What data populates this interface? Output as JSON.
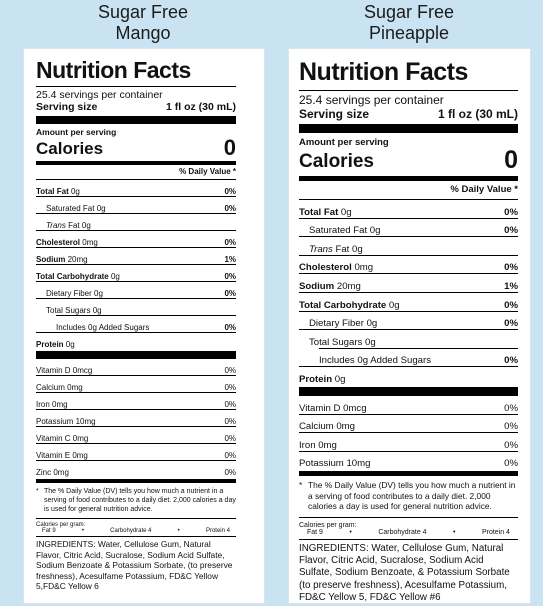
{
  "labels": [
    {
      "title_line1": "Sugar Free",
      "title_line2": "Mango",
      "heading": "Nutrition Facts",
      "servings": "25.4 servings per container",
      "serving_size_label": "Serving size",
      "serving_size_value": "1 fl oz (30 mL)",
      "amount_per_serving": "Amount per serving",
      "calories_label": "Calories",
      "calories_value": "0",
      "dv_header": "% Daily Value *",
      "rows": [
        {
          "label": "Total Fat",
          "amount": " 0g",
          "dv": "0%"
        },
        {
          "label": "Saturated Fat 0g",
          "amount": "",
          "dv": "0%"
        },
        {
          "label": "Trans",
          "amount": " Fat 0g",
          "dv": ""
        },
        {
          "label": "Cholesterol",
          "amount": " 0mg",
          "dv": "0%"
        },
        {
          "label": "Sodium",
          "amount": " 20mg",
          "dv": "1%"
        },
        {
          "label": "Total Carbohydrate",
          "amount": " 0g",
          "dv": "0%"
        },
        {
          "label": "Dietary Fiber 0g",
          "amount": "",
          "dv": "0%"
        },
        {
          "label": "Total Sugars 0g",
          "amount": "",
          "dv": ""
        },
        {
          "label": "Includes 0g Added Sugars",
          "amount": "",
          "dv": "0%"
        },
        {
          "label": "Protein",
          "amount": " 0g",
          "dv": ""
        }
      ],
      "vitamins": [
        {
          "label": "Vitamin D 0mcg",
          "dv": "0%"
        },
        {
          "label": "Calcium 0mg",
          "dv": "0%"
        },
        {
          "label": "Iron 0mg",
          "dv": "0%"
        },
        {
          "label": "Potassium 10mg",
          "dv": "0%"
        },
        {
          "label": "Vitamin C 0mg",
          "dv": "0%"
        },
        {
          "label": "Vitamin E 0mg",
          "dv": "0%"
        },
        {
          "label": "Zinc 0mg",
          "dv": "0%"
        }
      ],
      "footnote_star": "*",
      "footnote": "The % Daily Value (DV) tells you how much a nutrient in a serving of food contributes to a daily diet. 2,000 calories a day is used for general nutrition advice.",
      "cal_per_gram_label": "Calories per gram:",
      "cal_fat": "Fat 9",
      "cal_carb": "Carbohydrate 4",
      "cal_protein": "Protein 4",
      "bullet": "•",
      "ingredients": "INGREDIENTS: Water, Cellulose Gum, Natural Flavor, Citric Acid, Sucralose, Sodium Acid Sulfate, Sodium Benzoate & Potassium Sorbate, (to preserve freshness), Acesulfame Potassium, FD&C Yellow 5,FD&C Yellow 6"
    },
    {
      "title_line1": "Sugar Free",
      "title_line2": "Pineapple",
      "heading": "Nutrition Facts",
      "servings": "25.4 servings per container",
      "serving_size_label": "Serving size",
      "serving_size_value": "1 fl oz (30 mL)",
      "amount_per_serving": "Amount per serving",
      "calories_label": "Calories",
      "calories_value": "0",
      "dv_header": "% Daily Value *",
      "rows": [
        {
          "label": "Total Fat",
          "amount": " 0g",
          "dv": "0%"
        },
        {
          "label": "Saturated Fat 0g",
          "amount": "",
          "dv": "0%"
        },
        {
          "label": "Trans",
          "amount": " Fat 0g",
          "dv": ""
        },
        {
          "label": "Cholesterol",
          "amount": " 0mg",
          "dv": "0%"
        },
        {
          "label": "Sodium",
          "amount": " 20mg",
          "dv": "1%"
        },
        {
          "label": "Total Carbohydrate",
          "amount": " 0g",
          "dv": "0%"
        },
        {
          "label": "Dietary Fiber 0g",
          "amount": "",
          "dv": "0%"
        },
        {
          "label": "Total Sugars 0g",
          "amount": "",
          "dv": ""
        },
        {
          "label": "Includes 0g Added Sugars",
          "amount": "",
          "dv": "0%"
        },
        {
          "label": "Protein",
          "amount": " 0g",
          "dv": ""
        }
      ],
      "vitamins": [
        {
          "label": "Vitamin D 0mcg",
          "dv": "0%"
        },
        {
          "label": "Calcium 0mg",
          "dv": "0%"
        },
        {
          "label": "Iron 0mg",
          "dv": "0%"
        },
        {
          "label": "Potassium 10mg",
          "dv": "0%"
        }
      ],
      "footnote_star": "*",
      "footnote": "The % Daily Value (DV) tells you how much a nutrient in a serving of food contributes to a daily diet. 2,000 calories a day is used for general nutrition advice.",
      "cal_per_gram_label": "Calories per gram:",
      "cal_fat": "Fat 9",
      "cal_carb": "Carbohydrate 4",
      "cal_protein": "Protein 4",
      "bullet": "•",
      "ingredients": "INGREDIENTS: Water, Cellulose Gum, Natural Flavor, Citric Acid, Sucralose, Sodium Acid Sulfate, Sodium Benzoate, & Potassium Sorbate (to preserve freshness), Acesulfame Potassium, FD&C Yellow 5, FD&C Yellow #6"
    }
  ]
}
